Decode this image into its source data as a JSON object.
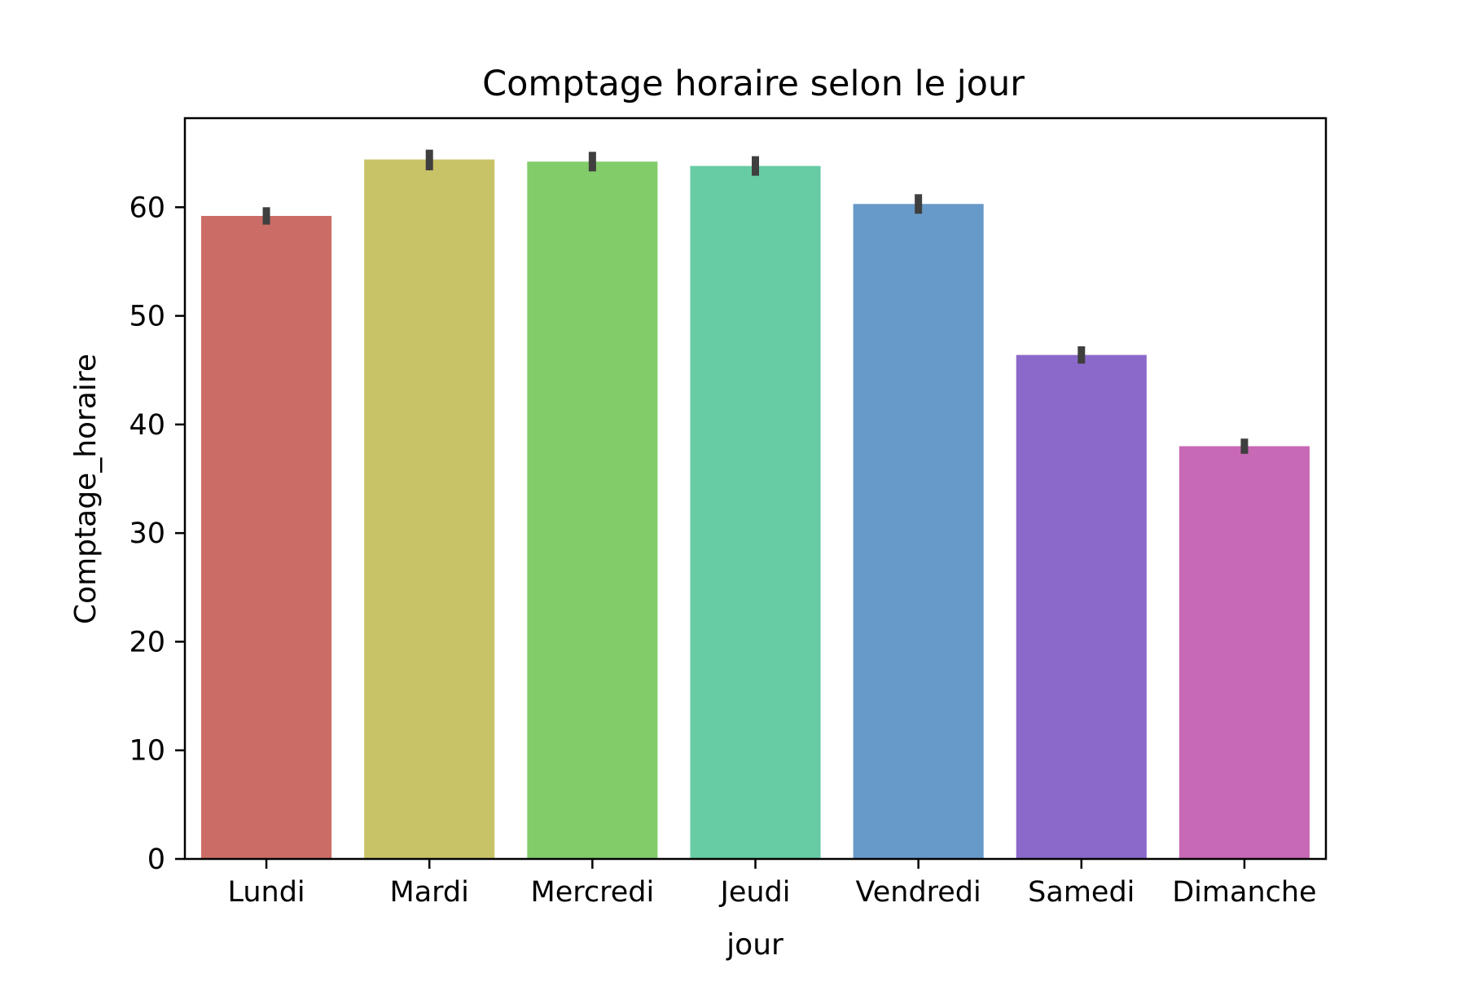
{
  "chart_data": {
    "type": "bar",
    "title": "Comptage horaire selon le jour",
    "xlabel": "jour",
    "ylabel": "Comptage_horaire",
    "categories": [
      "Lundi",
      "Mardi",
      "Mercredi",
      "Jeudi",
      "Vendredi",
      "Samedi",
      "Dimanche"
    ],
    "values": [
      59.2,
      64.4,
      64.2,
      63.8,
      60.3,
      46.4,
      38.0
    ],
    "error_bars": [
      [
        58.4,
        60.0
      ],
      [
        63.4,
        65.3
      ],
      [
        63.3,
        65.1
      ],
      [
        62.9,
        64.7
      ],
      [
        59.4,
        61.2
      ],
      [
        45.6,
        47.2
      ],
      [
        37.3,
        38.7
      ]
    ],
    "colors": [
      "#cb6d66",
      "#c9c367",
      "#82cc6a",
      "#67cba4",
      "#689ac9",
      "#8a69ca",
      "#c869b5"
    ],
    "error_bar_color": "#3f3f3f",
    "ylim": [
      0,
      68.2
    ],
    "yticks": [
      0,
      10,
      20,
      30,
      40,
      50,
      60
    ],
    "grid": false,
    "legend": "none"
  }
}
